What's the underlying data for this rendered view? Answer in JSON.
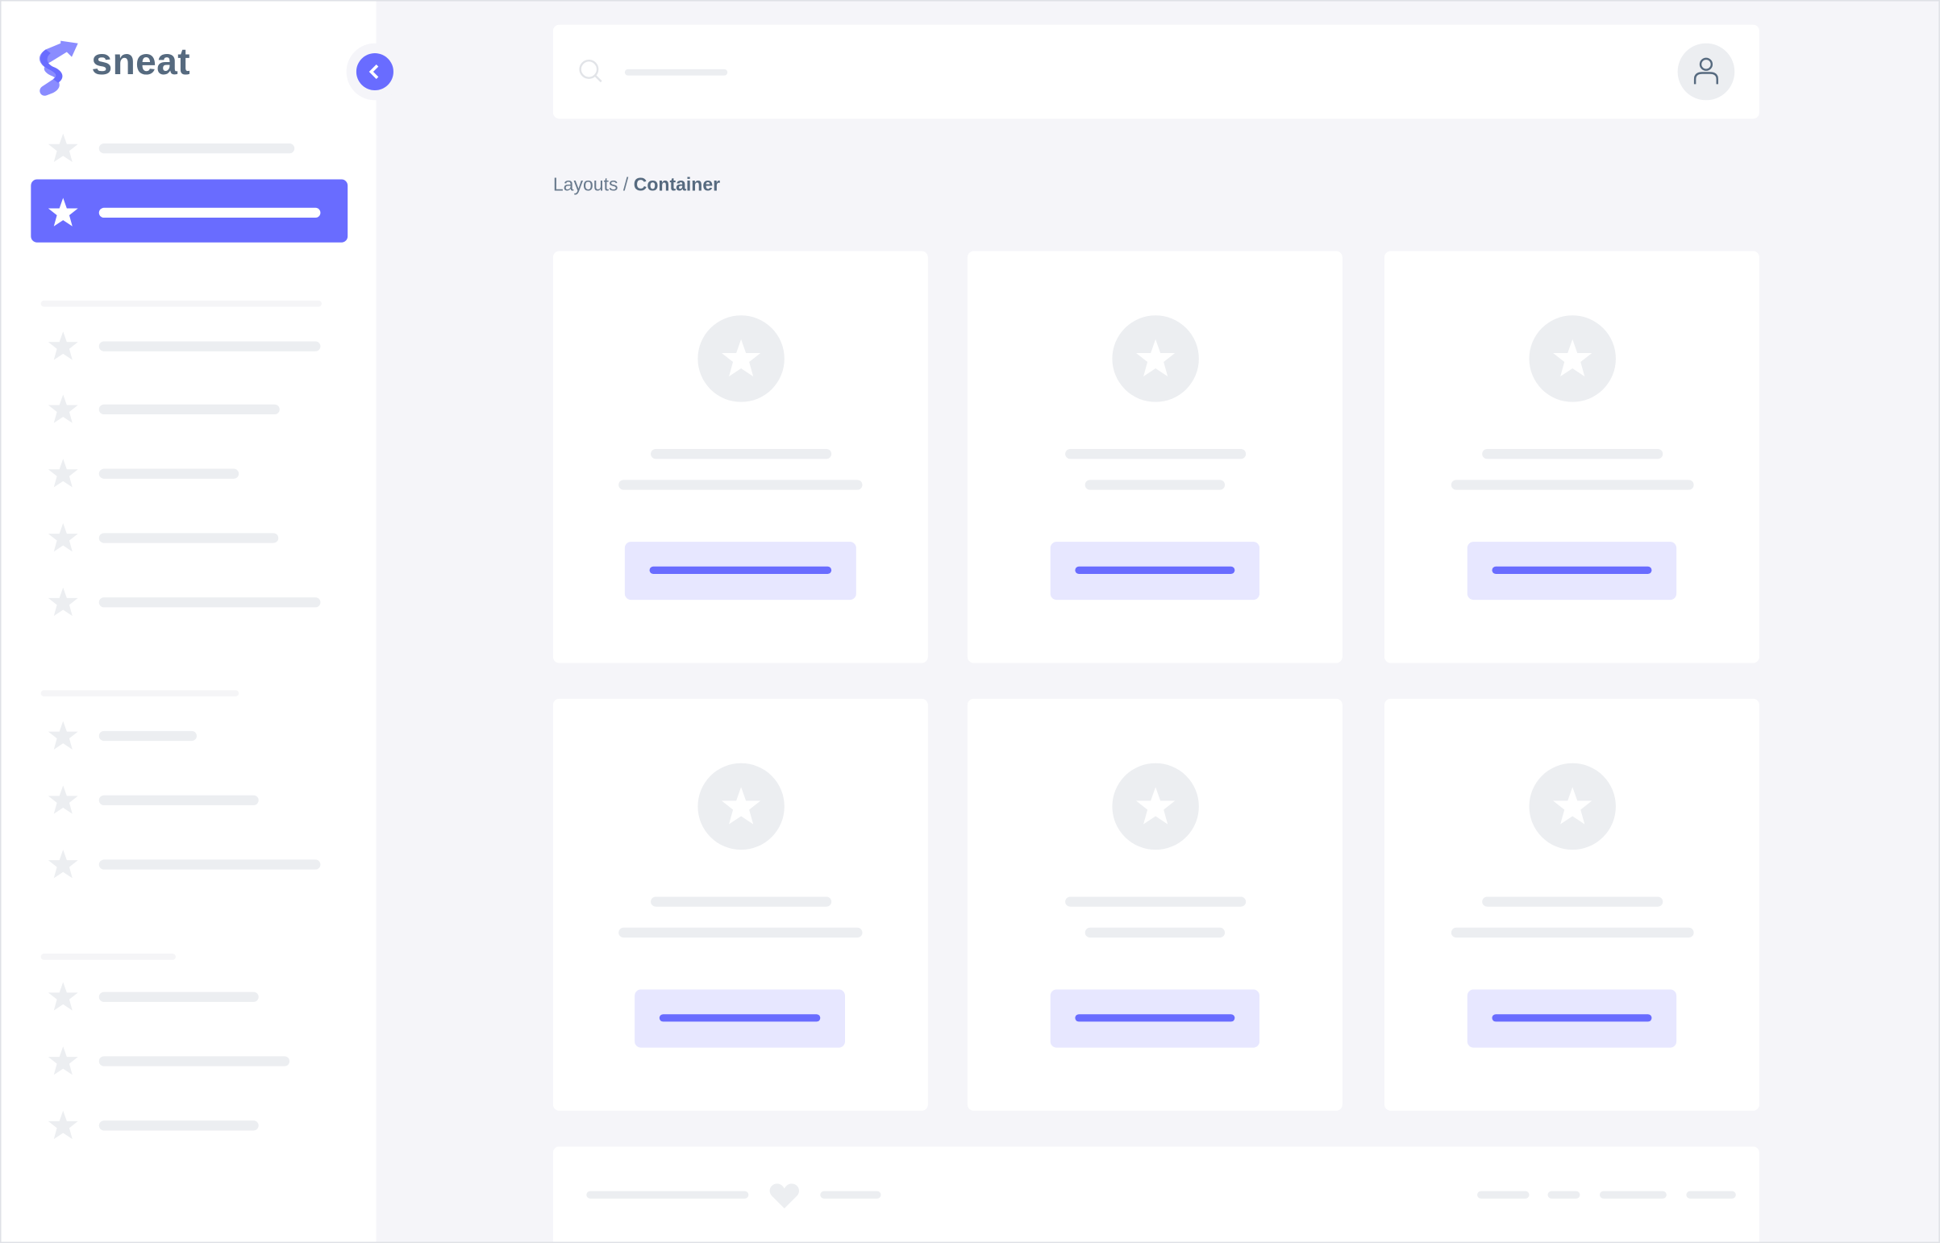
{
  "brand": {
    "name": "sneat",
    "logo_icon": "sneat-logo-icon"
  },
  "sidebar": {
    "toggle_icon": "chevron-left-icon",
    "item_icon": "star-icon",
    "active_index": 1
  },
  "navbar": {
    "search_icon": "search-icon",
    "avatar_icon": "user-icon"
  },
  "breadcrumb": {
    "parent": "Layouts",
    "separator": " / ",
    "current": "Container"
  },
  "cards": {
    "count": 6,
    "icon": "star-icon"
  },
  "footer": {
    "icon": "heart-icon"
  },
  "colors": {
    "primary": "#696cff",
    "primary_light": "#e7e7ff",
    "background": "#f5f5f9",
    "text": "#566a7f",
    "skeleton": "#eceef1"
  }
}
